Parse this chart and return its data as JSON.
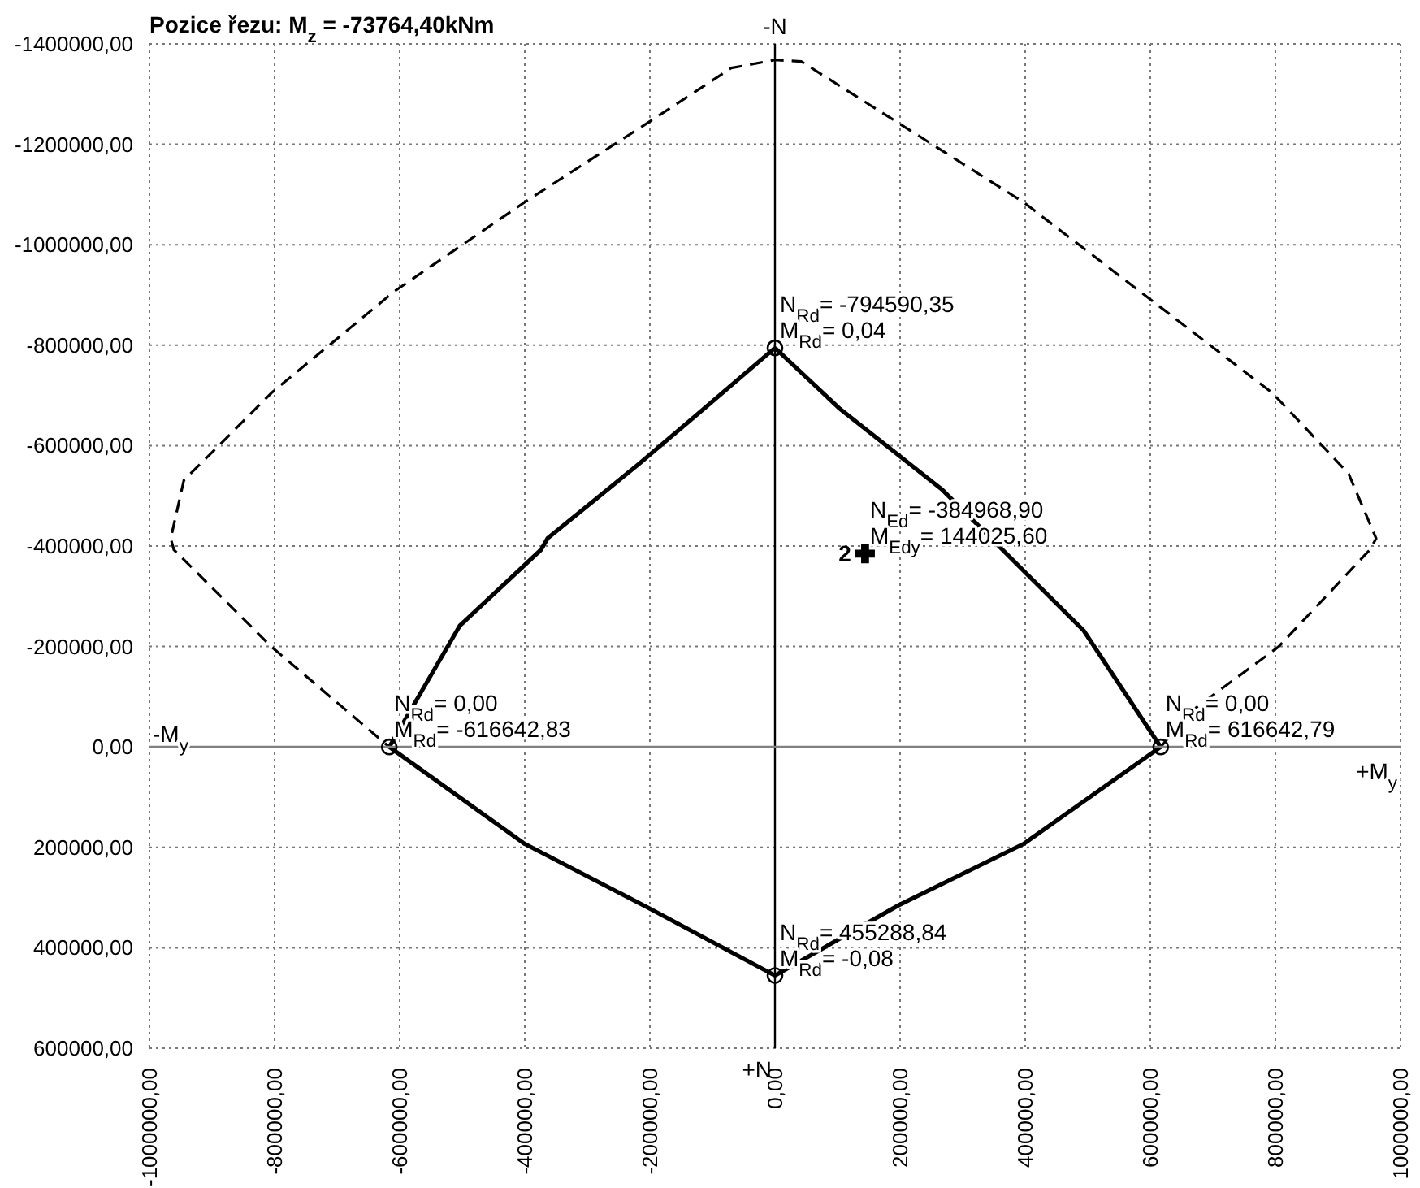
{
  "chart_data": {
    "type": "line",
    "title": "Pozice řezu: M$_{z}$ = -73764,40kNm",
    "xlim": [
      -1000000,
      1000000
    ],
    "xticks": [
      {
        "value": -1000000,
        "label": "-1000000,00"
      },
      {
        "value": -800000,
        "label": "-800000,00"
      },
      {
        "value": -600000,
        "label": "-600000,00"
      },
      {
        "value": -400000,
        "label": "-400000,00"
      },
      {
        "value": -200000,
        "label": "-200000,00"
      },
      {
        "value": 0,
        "label": "0,00"
      },
      {
        "value": 200000,
        "label": "200000,00"
      },
      {
        "value": 400000,
        "label": "400000,00"
      },
      {
        "value": 600000,
        "label": "600000,00"
      },
      {
        "value": 800000,
        "label": "800000,00"
      },
      {
        "value": 1000000,
        "label": "1000000,00"
      }
    ],
    "ylim": [
      600000,
      -1400000
    ],
    "yticks": [
      {
        "value": -1400000,
        "label": "-1400000,00"
      },
      {
        "value": -1200000,
        "label": "-1200000,00"
      },
      {
        "value": -1000000,
        "label": "-1000000,00"
      },
      {
        "value": -800000,
        "label": "-800000,00"
      },
      {
        "value": -600000,
        "label": "-600000,00"
      },
      {
        "value": -400000,
        "label": "-400000,00"
      },
      {
        "value": -200000,
        "label": "-200000,00"
      },
      {
        "value": 0,
        "label": "0,00"
      },
      {
        "value": 200000,
        "label": "200000,00"
      },
      {
        "value": 400000,
        "label": "400000,00"
      },
      {
        "value": 600000,
        "label": "600000,00"
      }
    ],
    "grid": true,
    "legend": false,
    "ref_lines": [
      {
        "axis": "x",
        "value": 0,
        "color": "#000000"
      },
      {
        "axis": "y",
        "value": 0,
        "color": "#808080"
      }
    ],
    "series": [
      {
        "color": "#000000",
        "line_style": "dashed",
        "marker": "none",
        "x": [
          616642.79,
          665000,
          805000,
          951000,
          961000,
          917000,
          795000,
          397000,
          42000,
          0,
          -70000,
          -200000,
          -400000,
          -608000,
          -805000,
          -893000,
          -945000,
          -966000,
          -961000,
          -805000,
          -616642.83
        ],
        "values": [
          0,
          -70800,
          -199500,
          -392700,
          -415000,
          -544000,
          -705000,
          -1085000,
          -1365000,
          -1368000,
          -1352000,
          -1245600,
          -1085000,
          -907600,
          -705000,
          -595000,
          -531000,
          -415000,
          -392700,
          -199500,
          0
        ]
      },
      {
        "color": "#000000",
        "line_style": "solid",
        "marker": "none",
        "x": [
          0,
          104000,
          267500,
          338000,
          363600,
          493500,
          616642.79,
          397400,
          197400,
          0
        ],
        "values": [
          -794590.35,
          -673000,
          -512000,
          -425000,
          -392700,
          -231700,
          0,
          193100,
          315400,
          455288.84
        ]
      },
      {
        "color": "#000000",
        "line_style": "solid",
        "marker": "none",
        "x": [
          0,
          -200000,
          -400000,
          -616642.83,
          -503900,
          -374000,
          -363600,
          -218000,
          -114000,
          0
        ],
        "values": [
          455288.84,
          322000,
          193100,
          0,
          -241400,
          -392700,
          -415200,
          -563000,
          -673000,
          -794590.35
        ]
      },
      {
        "type": "scatter",
        "color": "#000000",
        "marker": "circle",
        "x": [
          0,
          -616642.83,
          616642.79,
          0
        ],
        "values": [
          -794590.35,
          0,
          0,
          455288.84
        ]
      },
      {
        "type": "scatter",
        "name": "2",
        "color": "#000000",
        "marker": "cross",
        "x": [
          144025.6
        ],
        "values": [
          -384968.9
        ]
      }
    ],
    "annotations": [
      {
        "text": "N$_{Rd}$= -794590,35\nM$_{Rd}$= 0,04",
        "x": 0,
        "y": -794590.35
      },
      {
        "text": "N$_{Rd}$= 0,00\nM$_{Rd}$= -616642,83",
        "x": -616642.83,
        "y": 0
      },
      {
        "text": "N$_{Rd}$= 0,00\nM$_{Rd}$= 616642,79",
        "x": 616642.79,
        "y": 0
      },
      {
        "text": "N$_{Rd}$= 455288,84\nM$_{Rd}$= -0,08",
        "x": 0,
        "y": 455288.84
      },
      {
        "text": "N$_{Ed}$= -384968,90\nM$_{Edy}$= 144025,60",
        "x": 144025.6,
        "y": -384968.9
      },
      {
        "text": "-N",
        "x": 0,
        "y": -1400000
      },
      {
        "text": "+N",
        "x": 0,
        "y": 600000
      },
      {
        "text": "-M$_{y}$",
        "x": -1000000,
        "y": 0
      },
      {
        "text": "+M$_{y}$",
        "x": 1000000,
        "y": 0
      }
    ]
  }
}
